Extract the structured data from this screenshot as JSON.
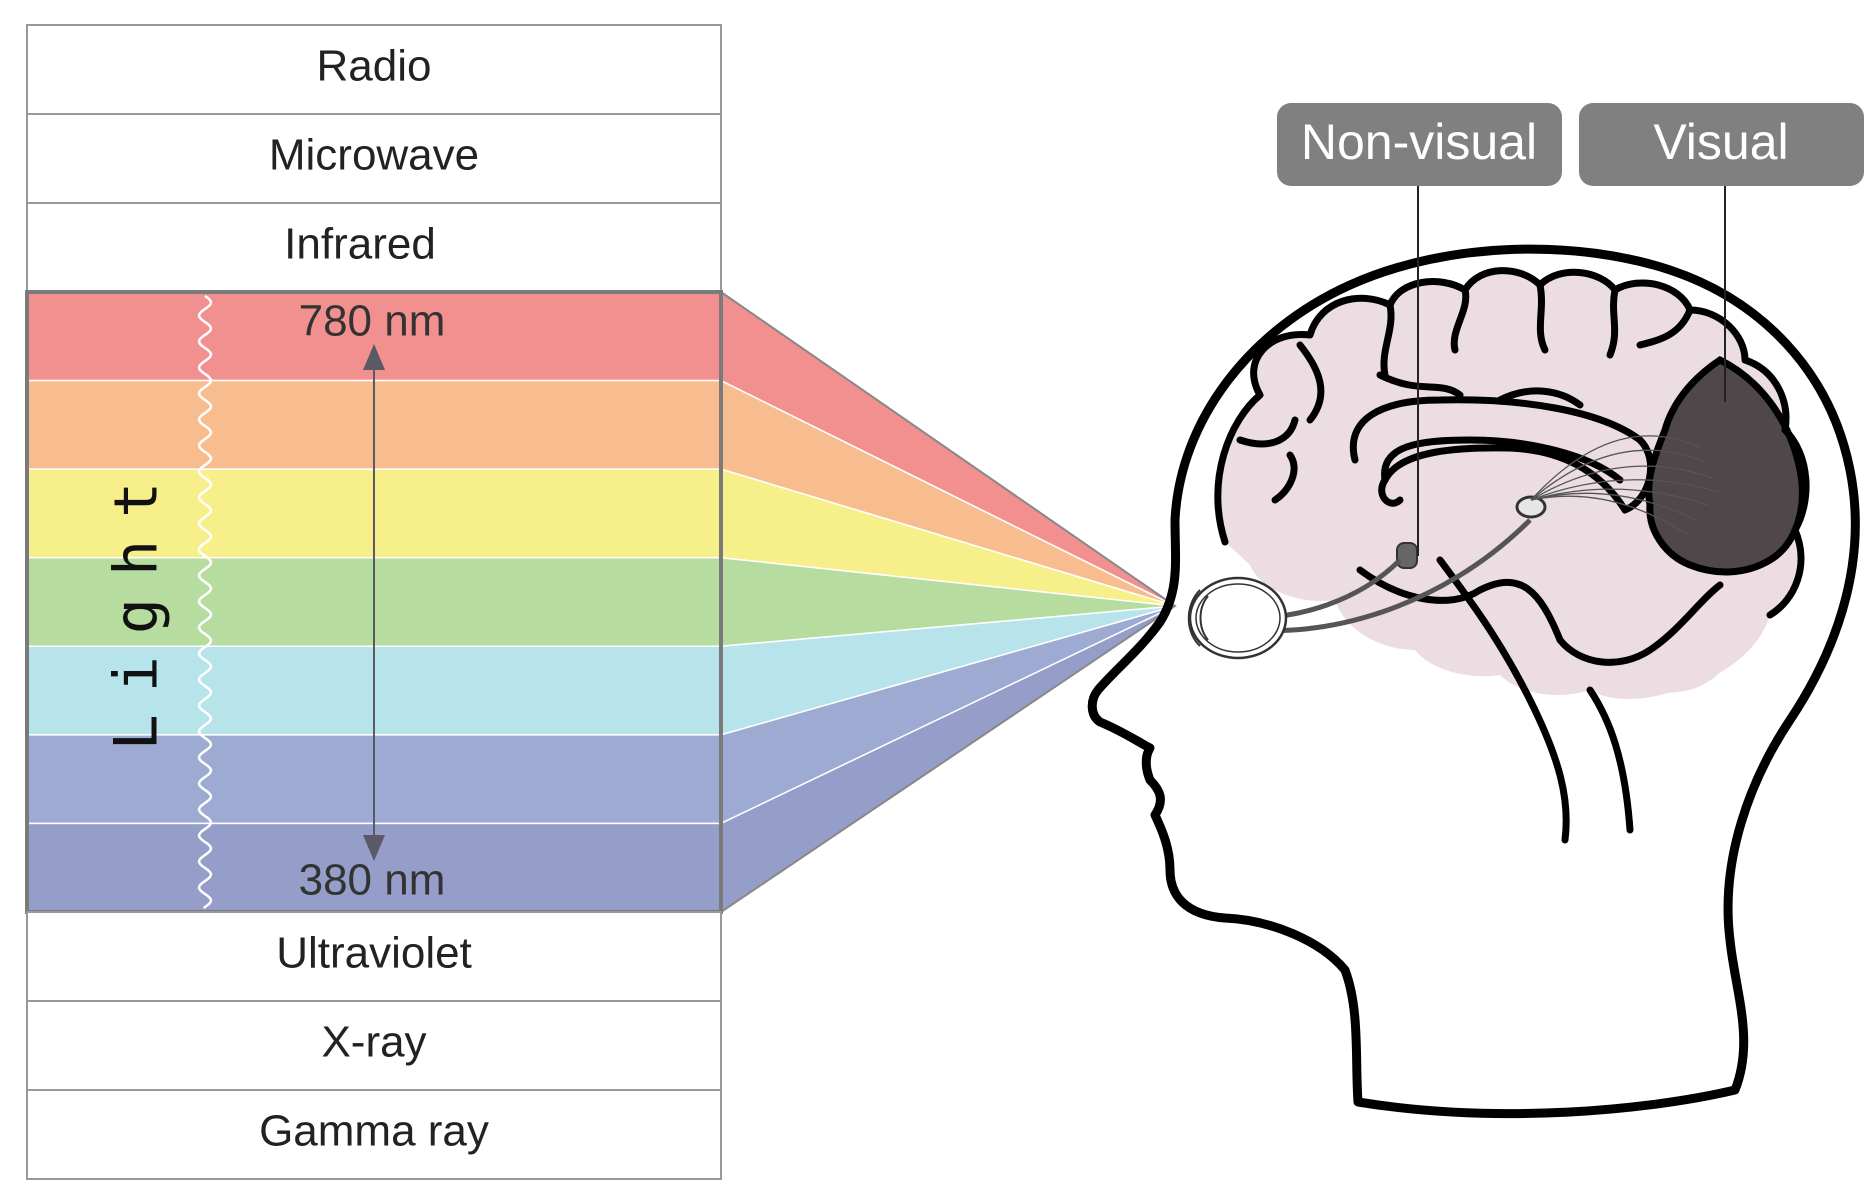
{
  "spectrum": {
    "above_light": [
      "Radio",
      "Microwave",
      "Infrared"
    ],
    "light_label": "Light",
    "top_wavelength": "780 nm",
    "bottom_wavelength": "380 nm",
    "below_light": [
      "Ultraviolet",
      "X-ray",
      "Gamma ray"
    ],
    "light_colors": [
      "#f28f8f",
      "#f7bd8f",
      "#f7ef8a",
      "#b7dca0",
      "#b7e3eb",
      "#9daad1",
      "#959dc9"
    ]
  },
  "brain": {
    "nonvisual_label": "Non-visual",
    "visual_label": "Visual",
    "tag_color": "#808080",
    "brain_fill": "#ecdde2",
    "visual_cortex_fill": "#4f4749"
  }
}
